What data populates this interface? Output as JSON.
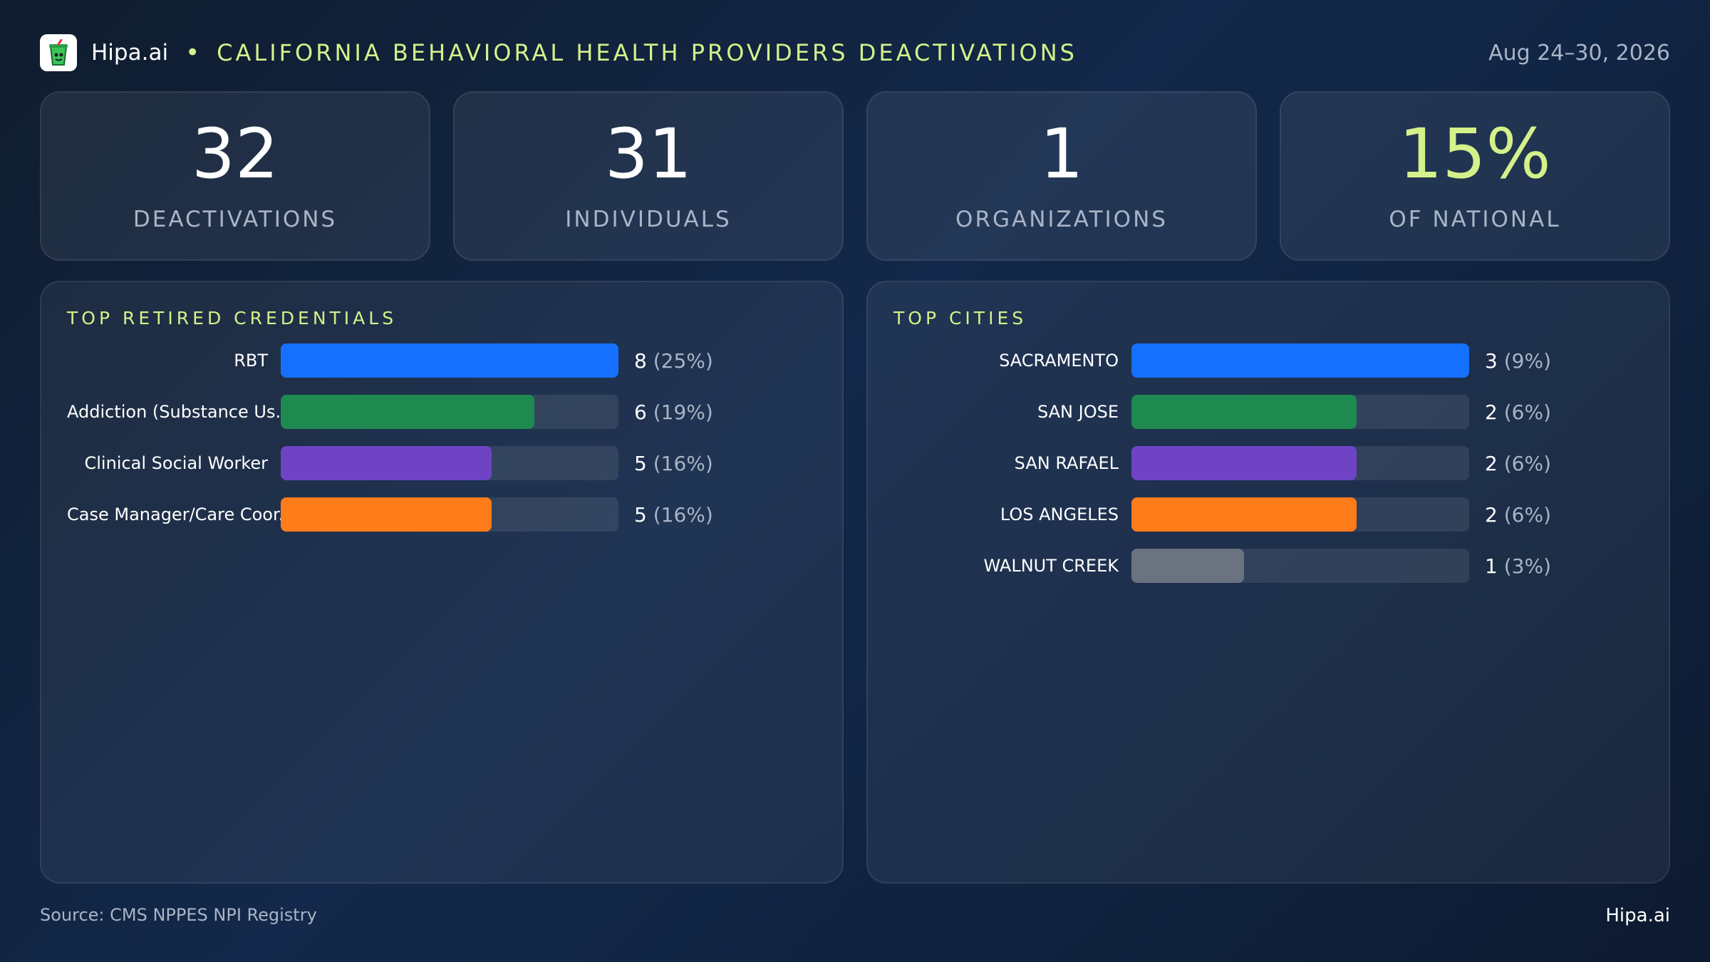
{
  "header": {
    "brand": "Hipa.ai",
    "bullet": "•",
    "title": "CALIFORNIA BEHAVIORAL HEALTH PROVIDERS DEACTIVATIONS",
    "date": "Aug 24–30, 2026",
    "logo_icon": "cup-icon"
  },
  "kpis": [
    {
      "value": "32",
      "label": "DEACTIVATIONS"
    },
    {
      "value": "31",
      "label": "INDIVIDUALS"
    },
    {
      "value": "1",
      "label": "ORGANIZATIONS"
    },
    {
      "value": "15%",
      "label": "OF NATIONAL"
    }
  ],
  "colors": {
    "accent": "#d4f18a",
    "blue": "#1570ff",
    "green": "#1e8a50",
    "purple": "#6e44c4",
    "orange": "#ff7c1a",
    "gray": "#6b7280"
  },
  "chart_data": [
    {
      "type": "bar",
      "orientation": "horizontal",
      "title": "TOP RETIRED CREDENTIALS",
      "categories": [
        "RBT",
        "Addiction (Substance Us...",
        "Clinical Social Worker",
        "Case Manager/Care Coor..."
      ],
      "values": [
        8,
        6,
        5,
        5
      ],
      "value_labels": [
        "8",
        "6",
        "5",
        "5"
      ],
      "pct_labels": [
        "(25%)",
        "(19%)",
        "(16%)",
        "(16%)"
      ],
      "colors": [
        "#1570ff",
        "#1e8a50",
        "#6e44c4",
        "#ff7c1a"
      ],
      "xlim": [
        0,
        8
      ]
    },
    {
      "type": "bar",
      "orientation": "horizontal",
      "title": "TOP CITIES",
      "categories": [
        "SACRAMENTO",
        "SAN JOSE",
        "SAN RAFAEL",
        "LOS ANGELES",
        "WALNUT CREEK"
      ],
      "values": [
        3,
        2,
        2,
        2,
        1
      ],
      "value_labels": [
        "3",
        "2",
        "2",
        "2",
        "1"
      ],
      "pct_labels": [
        "(9%)",
        "(6%)",
        "(6%)",
        "(6%)",
        "(3%)"
      ],
      "colors": [
        "#1570ff",
        "#1e8a50",
        "#6e44c4",
        "#ff7c1a",
        "#6b7280"
      ],
      "xlim": [
        0,
        3
      ]
    }
  ],
  "footer": {
    "source": "Source: CMS NPPES NPI Registry",
    "brand": "Hipa.ai"
  }
}
